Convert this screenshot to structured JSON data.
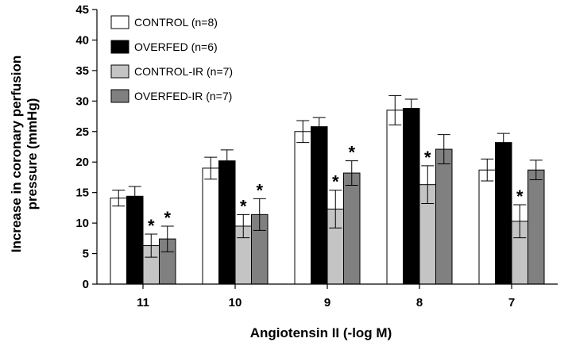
{
  "chart_data": {
    "type": "bar",
    "title": "",
    "xlabel": "Angiotensin II (-log M)",
    "ylabel_lines": [
      "Increase in coronary perfusion",
      "pressure (mmHg)"
    ],
    "ylim": [
      0,
      45
    ],
    "yticks": [
      0,
      5,
      10,
      15,
      20,
      25,
      30,
      35,
      40,
      45
    ],
    "categories": [
      "11",
      "10",
      "9",
      "8",
      "7"
    ],
    "series": [
      {
        "name": "CONTROL (n=8)",
        "color": "#ffffff",
        "values": [
          14.1,
          19.0,
          25.0,
          28.5,
          18.7
        ],
        "errors": [
          1.3,
          1.8,
          1.8,
          2.4,
          1.8
        ],
        "significant": [
          false,
          false,
          false,
          false,
          false
        ]
      },
      {
        "name": "OVERFED (n=6)",
        "color": "#000000",
        "values": [
          14.4,
          20.2,
          25.8,
          28.8,
          23.2
        ],
        "errors": [
          1.6,
          1.8,
          1.5,
          1.5,
          1.5
        ],
        "significant": [
          false,
          false,
          false,
          false,
          false
        ]
      },
      {
        "name": "CONTROL-IR (n=7)",
        "color": "#c4c4c4",
        "values": [
          6.3,
          9.5,
          12.3,
          16.3,
          10.3
        ],
        "errors": [
          1.9,
          1.9,
          3.1,
          3.1,
          2.7
        ],
        "significant": [
          true,
          true,
          true,
          true,
          true
        ]
      },
      {
        "name": "OVERFED-IR (n=7)",
        "color": "#808080",
        "values": [
          7.4,
          11.4,
          18.2,
          22.1,
          18.7
        ],
        "errors": [
          2.1,
          2.6,
          2.0,
          2.4,
          1.6
        ],
        "significant": [
          true,
          true,
          true,
          false,
          false
        ]
      }
    ],
    "significance_marker": "*",
    "legend_position": "top-left",
    "grid": false
  }
}
